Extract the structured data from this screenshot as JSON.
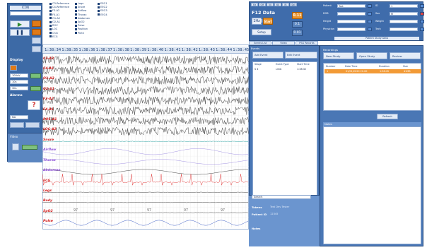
{
  "left_panel": {
    "header": "ICON",
    "section_display": "Display",
    "select1": "100uV",
    "select2": "10s",
    "select3": "30s",
    "section_alarms": "Alarms",
    "select4": "NA",
    "bottom_label": "Video"
  },
  "legend": {
    "col1": [
      "C3-Reference",
      "C4-Reference",
      "F3-A2",
      "F4-A1",
      "O1-A2",
      "O2-A1",
      "ROC",
      "LOC",
      "Chin",
      "ECG"
    ],
    "col2": [
      "Legs",
      "Snore",
      "Airflow",
      "Thorax",
      "Abdomen",
      "SpO2",
      "Pulse",
      "Position",
      "Pleth"
    ],
    "col3": [
      "EEG1",
      "EEG2",
      "EEG3",
      "EEG4"
    ]
  },
  "chart": {
    "time_ticks": [
      "1:38:34",
      "1:38:35",
      "1:38:36",
      "1:38:37",
      "1:38:38",
      "1:38:39",
      "1:38:40",
      "1:38:41",
      "1:38:42",
      "1:38:43",
      "1:38:44",
      "1:38:45"
    ],
    "channels": [
      {
        "label": "C3-A2",
        "color": "#d11d1d"
      },
      {
        "label": "C4-A1",
        "color": "#d11d1d"
      },
      {
        "label": "O1-A2",
        "color": "#d11d1d"
      },
      {
        "label": "O2-A1",
        "color": "#d11d1d"
      },
      {
        "label": "F3-A2",
        "color": "#d11d1d"
      },
      {
        "label": "F4-A1",
        "color": "#d11d1d"
      },
      {
        "label": "ROC-A1",
        "color": "#d11d1d"
      },
      {
        "label": "LOC-A2",
        "color": "#d11d1d"
      },
      {
        "label": "Snore",
        "color": "#d11d1d"
      },
      {
        "label": "Airflow",
        "color": "#8c4fd6"
      },
      {
        "label": "Thorax",
        "color": "#8c4fd6"
      },
      {
        "label": "Abdomen",
        "color": "#8c4fd6"
      },
      {
        "label": "ECG",
        "color": "#d11d1d"
      },
      {
        "label": "Legs",
        "color": "#d11d1d"
      },
      {
        "label": "Body",
        "color": "#d11d1d"
      },
      {
        "label": "SpO2",
        "color": "#d11d1d"
      },
      {
        "label": "Pulse",
        "color": "#d11d1d"
      }
    ],
    "spo2_values": [
      "97",
      "97",
      "97",
      "97",
      "97"
    ]
  },
  "right_top": {
    "tabs": [
      "Hz",
      "Off",
      "50",
      "60",
      "IR",
      "Sat"
    ],
    "freq_label": "F12 Data Mode",
    "freq_box": "1Hz",
    "start_button": "Start",
    "val1": "0.11",
    "val2": "0.1",
    "val3": "0.01",
    "setup_label": "Setup",
    "fields": [
      {
        "label": "Patient",
        "value": "Test"
      },
      {
        "label": "ID",
        "value": "1"
      },
      {
        "label": "DOB",
        "value": ""
      },
      {
        "label": "Sex",
        "value": "M"
      },
      {
        "label": "Height",
        "value": ""
      },
      {
        "label": "Weight",
        "value": ""
      },
      {
        "label": "Physician",
        "value": ""
      },
      {
        "label": "Tech",
        "value": ""
      }
    ],
    "footer": "Patient Study Data"
  },
  "events_panel": {
    "tabs": [
      "Events List",
      "Video",
      "PSG Records"
    ],
    "header": "Events",
    "btn1": "Add Event",
    "btn2": "Edit Event",
    "columns": [
      "Stage",
      "Event Type",
      "Start Time"
    ],
    "rows": [
      {
        "c1": "S 4",
        "c2": "Limb",
        "c3": "1:38:32"
      }
    ],
    "search_placeholder": "Search",
    "info_label1": "Tokens",
    "info_value1": "Test Dev Tester",
    "info_label2": "Patient ID",
    "info_value2": "12345",
    "info_label3": "Notes"
  },
  "recordings": {
    "header": "Recordings",
    "btn1": "New Study",
    "btn2": "Open Study",
    "btn3": "Review",
    "columns": [
      "Number",
      "Date Time",
      "Duration",
      "Size"
    ],
    "selected_row": {
      "c1": "1",
      "c2": "01/01/2020 21:00",
      "c3": "1:38:45",
      "c4": "41MB"
    },
    "refresh": "Refresh",
    "notes_title": "Notes"
  }
}
